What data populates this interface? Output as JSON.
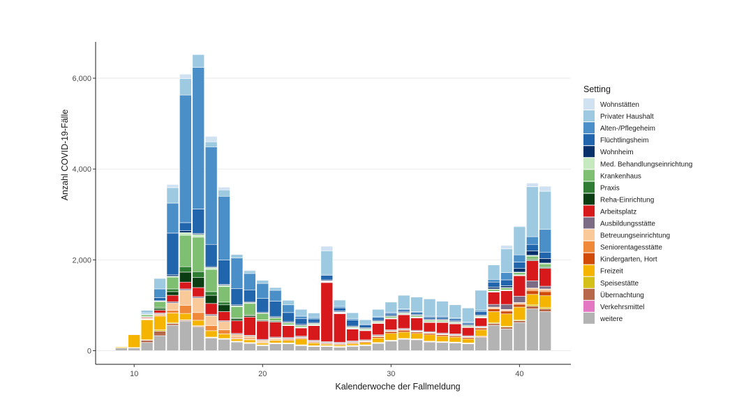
{
  "chart_data": {
    "type": "bar",
    "stacked": true,
    "xlabel": "Kalenderwoche der Fallmeldung",
    "ylabel": "Anzahl COVID-19-Fälle",
    "xlim": [
      7,
      44
    ],
    "ylim": [
      -300,
      6800
    ],
    "xticks": [
      10,
      20,
      30,
      40
    ],
    "yticks": [
      0,
      2000,
      4000,
      6000
    ],
    "ytick_labels": [
      "0",
      "2,000",
      "4,000",
      "6,000"
    ],
    "grid": "horizontal-major",
    "legend": {
      "title": "Setting",
      "position": "right"
    },
    "weeks": [
      9,
      10,
      11,
      12,
      13,
      14,
      15,
      16,
      17,
      18,
      19,
      20,
      21,
      22,
      23,
      24,
      25,
      26,
      27,
      28,
      29,
      30,
      31,
      32,
      33,
      34,
      35,
      36,
      37,
      38,
      39,
      40,
      41,
      42
    ],
    "series": [
      {
        "name": "weitere",
        "color": "#b3b3b3",
        "values": [
          60,
          60,
          180,
          330,
          560,
          650,
          520,
          280,
          250,
          190,
          160,
          110,
          150,
          150,
          110,
          90,
          90,
          75,
          95,
          110,
          160,
          210,
          250,
          240,
          190,
          180,
          170,
          150,
          290,
          560,
          480,
          620,
          920,
          860
        ]
      },
      {
        "name": "Verkehrsmittel",
        "color": "#e377c2",
        "values": [
          0,
          0,
          0,
          0,
          0,
          0,
          0,
          0,
          0,
          0,
          0,
          0,
          0,
          0,
          0,
          0,
          0,
          0,
          0,
          0,
          0,
          0,
          0,
          0,
          0,
          0,
          0,
          0,
          0,
          0,
          0,
          0,
          0,
          0
        ]
      },
      {
        "name": "Übernachtung",
        "color": "#b8684a",
        "values": [
          0,
          10,
          50,
          100,
          40,
          20,
          20,
          10,
          10,
          10,
          10,
          10,
          10,
          10,
          10,
          10,
          10,
          10,
          10,
          10,
          10,
          10,
          10,
          10,
          10,
          10,
          10,
          10,
          20,
          40,
          40,
          40,
          60,
          60
        ]
      },
      {
        "name": "Speisestätte",
        "color": "#d4c018",
        "values": [
          0,
          0,
          10,
          30,
          20,
          10,
          10,
          10,
          10,
          10,
          10,
          10,
          10,
          10,
          10,
          10,
          10,
          10,
          10,
          10,
          10,
          10,
          10,
          10,
          10,
          10,
          10,
          10,
          10,
          20,
          20,
          20,
          30,
          30
        ]
      },
      {
        "name": "Freizeit",
        "color": "#f5b400",
        "values": [
          20,
          280,
          440,
          300,
          210,
          140,
          120,
          140,
          100,
          50,
          60,
          40,
          60,
          60,
          130,
          60,
          30,
          30,
          40,
          50,
          100,
          150,
          140,
          120,
          140,
          120,
          110,
          90,
          140,
          240,
          270,
          280,
          230,
          260
        ]
      },
      {
        "name": "Kindergarten, Hort",
        "color": "#d04b07",
        "values": [
          0,
          0,
          0,
          0,
          0,
          0,
          0,
          0,
          0,
          10,
          10,
          10,
          10,
          20,
          20,
          20,
          20,
          20,
          20,
          20,
          30,
          40,
          40,
          30,
          30,
          30,
          30,
          30,
          40,
          60,
          60,
          60,
          80,
          90
        ]
      },
      {
        "name": "Seniorentagesstätte",
        "color": "#f0883a",
        "values": [
          0,
          0,
          10,
          20,
          60,
          180,
          170,
          110,
          90,
          30,
          30,
          20,
          20,
          10,
          10,
          10,
          10,
          10,
          10,
          10,
          10,
          10,
          10,
          10,
          10,
          10,
          10,
          10,
          10,
          20,
          20,
          20,
          30,
          30
        ]
      },
      {
        "name": "Betreuungseinrichtung",
        "color": "#f9c99a",
        "values": [
          0,
          0,
          10,
          30,
          160,
          330,
          320,
          220,
          180,
          60,
          40,
          30,
          20,
          10,
          10,
          10,
          10,
          10,
          10,
          10,
          10,
          10,
          10,
          10,
          10,
          10,
          10,
          10,
          10,
          20,
          20,
          20,
          30,
          30
        ]
      },
      {
        "name": "Ausbildungsstätte",
        "color": "#7b6b85",
        "values": [
          0,
          0,
          10,
          20,
          30,
          30,
          30,
          30,
          20,
          20,
          20,
          20,
          20,
          20,
          20,
          20,
          20,
          20,
          20,
          20,
          20,
          20,
          20,
          20,
          20,
          20,
          20,
          20,
          20,
          60,
          110,
          140,
          160,
          60
        ]
      },
      {
        "name": "Arbeitsplatz",
        "color": "#d7191c",
        "values": [
          0,
          10,
          20,
          60,
          140,
          150,
          200,
          240,
          200,
          280,
          400,
          400,
          330,
          260,
          180,
          320,
          1300,
          630,
          260,
          200,
          250,
          240,
          300,
          270,
          200,
          230,
          220,
          180,
          180,
          270,
          300,
          450,
          440,
          390
        ]
      },
      {
        "name": "Reha-Einrichtung",
        "color": "#0b3d12",
        "values": [
          0,
          0,
          10,
          30,
          80,
          220,
          220,
          180,
          150,
          40,
          30,
          20,
          20,
          10,
          10,
          10,
          10,
          10,
          10,
          10,
          10,
          10,
          10,
          10,
          10,
          10,
          10,
          10,
          10,
          10,
          10,
          10,
          20,
          20
        ]
      },
      {
        "name": "Praxis",
        "color": "#2e7d32",
        "values": [
          0,
          0,
          10,
          30,
          60,
          120,
          130,
          80,
          60,
          20,
          20,
          10,
          10,
          10,
          10,
          10,
          10,
          10,
          10,
          10,
          10,
          10,
          10,
          10,
          10,
          10,
          10,
          10,
          10,
          10,
          10,
          10,
          20,
          20
        ]
      },
      {
        "name": "Krankenhaus",
        "color": "#7ebf72",
        "values": [
          0,
          0,
          40,
          130,
          260,
          690,
          760,
          490,
          340,
          250,
          250,
          140,
          60,
          40,
          30,
          20,
          10,
          10,
          20,
          20,
          20,
          30,
          20,
          30,
          30,
          30,
          20,
          20,
          20,
          40,
          40,
          50,
          60,
          60
        ]
      },
      {
        "name": "Med. Behandlungseinrichtung",
        "color": "#c7e9c0",
        "values": [
          0,
          0,
          10,
          10,
          20,
          60,
          60,
          40,
          30,
          20,
          20,
          10,
          10,
          10,
          10,
          10,
          10,
          10,
          10,
          10,
          10,
          10,
          10,
          10,
          10,
          10,
          10,
          10,
          10,
          10,
          10,
          10,
          20,
          20
        ]
      },
      {
        "name": "Wohnheim",
        "color": "#08306b",
        "values": [
          0,
          0,
          0,
          10,
          30,
          40,
          20,
          20,
          20,
          20,
          20,
          20,
          20,
          20,
          20,
          20,
          20,
          20,
          20,
          20,
          20,
          20,
          20,
          20,
          20,
          20,
          20,
          20,
          20,
          40,
          40,
          80,
          100,
          100
        ]
      },
      {
        "name": "Flüchtlingsheim",
        "color": "#2166ac",
        "values": [
          0,
          0,
          10,
          70,
          920,
          180,
          540,
          490,
          540,
          360,
          260,
          300,
          340,
          200,
          130,
          80,
          100,
          70,
          130,
          60,
          60,
          40,
          40,
          40,
          40,
          40,
          40,
          30,
          70,
          110,
          130,
          140,
          140,
          140
        ]
      },
      {
        "name": "Alten-/Pflegeheim",
        "color": "#4a8fc7",
        "values": [
          0,
          0,
          20,
          190,
          660,
          2810,
          3120,
          2150,
          1400,
          670,
          360,
          330,
          240,
          170,
          50,
          30,
          20,
          30,
          30,
          20,
          20,
          20,
          20,
          20,
          20,
          20,
          20,
          20,
          30,
          60,
          160,
          160,
          170,
          500
        ]
      },
      {
        "name": "Privater Haushalt",
        "color": "#9ecae1",
        "values": [
          0,
          0,
          60,
          230,
          340,
          360,
          280,
          110,
          140,
          80,
          60,
          70,
          60,
          100,
          150,
          100,
          520,
          140,
          130,
          90,
          160,
          230,
          300,
          320,
          380,
          330,
          290,
          310,
          440,
          320,
          520,
          620,
          1100,
          840
        ]
      },
      {
        "name": "Wohnstätten",
        "color": "#d0e1f2",
        "values": [
          0,
          0,
          0,
          0,
          70,
          100,
          0,
          120,
          60,
          10,
          20,
          0,
          0,
          0,
          0,
          0,
          100,
          0,
          0,
          0,
          0,
          0,
          0,
          0,
          0,
          0,
          0,
          0,
          0,
          10,
          80,
          20,
          80,
          110
        ]
      }
    ]
  }
}
